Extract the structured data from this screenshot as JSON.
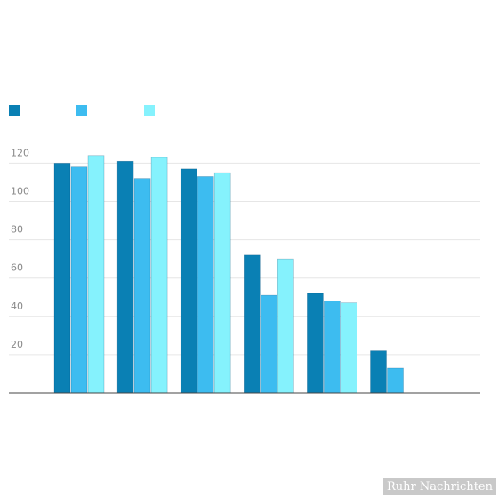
{
  "chart_data": {
    "type": "bar",
    "title": "",
    "xlabel": "",
    "ylabel": "",
    "ylim": [
      0,
      125
    ],
    "yticks": [
      20,
      40,
      60,
      80,
      100,
      120
    ],
    "ytick_labels": [
      "20",
      "40",
      "60",
      "80",
      "100",
      "120"
    ],
    "grid": true,
    "legend_position": "top-left",
    "categories": [
      "",
      "",
      "",
      "",
      "",
      "",
      ""
    ],
    "series": [
      {
        "color": "#0a80b4",
        "values": [
          120,
          121,
          117,
          72,
          52,
          22,
          null
        ]
      },
      {
        "color": "#3dbcf0",
        "values": [
          118,
          112,
          113,
          51,
          48,
          13,
          null
        ]
      },
      {
        "color": "#85f2fd",
        "values": [
          124,
          123,
          115,
          70,
          47,
          null,
          null
        ]
      }
    ]
  },
  "watermark": "Ruhr Nachrichten"
}
